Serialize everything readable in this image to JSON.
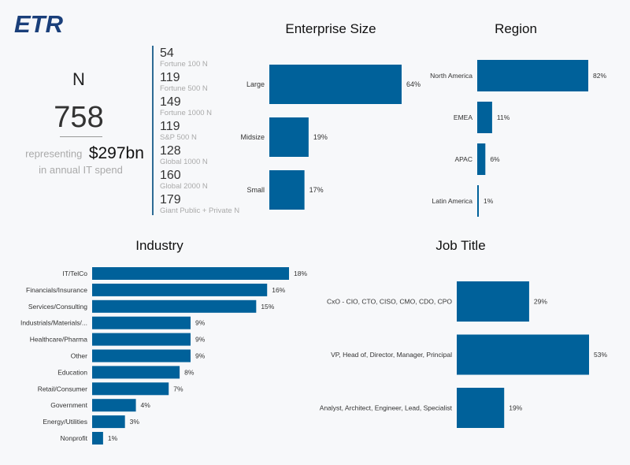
{
  "brand": {
    "logo_text": "ETR",
    "logo_color": "#1a3f7a",
    "bar_color": "#00619a"
  },
  "summary": {
    "n_label": "N",
    "n_value": "758",
    "representing": "representing",
    "amount": "$297bn",
    "sub": "in annual IT spend"
  },
  "counts": [
    {
      "value": "54",
      "label": "Fortune 100 N"
    },
    {
      "value": "119",
      "label": "Fortune 500 N"
    },
    {
      "value": "149",
      "label": "Fortune 1000 N"
    },
    {
      "value": "119",
      "label": "S&P 500 N"
    },
    {
      "value": "128",
      "label": "Global 1000 N"
    },
    {
      "value": "160",
      "label": "Global 2000 N"
    },
    {
      "value": "179",
      "label": "Giant Public + Private N"
    }
  ],
  "chart_data": [
    {
      "id": "enterprise",
      "type": "bar",
      "orientation": "horizontal",
      "title": "Enterprise Size",
      "categories": [
        "Large",
        "Midsize",
        "Small"
      ],
      "values": [
        64,
        19,
        17
      ],
      "labels": [
        "64%",
        "19%",
        "17%"
      ],
      "xlabel": "",
      "ylabel": "",
      "grid": false
    },
    {
      "id": "region",
      "type": "bar",
      "orientation": "horizontal",
      "title": "Region",
      "categories": [
        "North America",
        "EMEA",
        "APAC",
        "Latin America"
      ],
      "values": [
        82,
        11,
        6,
        1
      ],
      "labels": [
        "82%",
        "11%",
        "6%",
        "1%"
      ],
      "xlabel": "",
      "ylabel": "",
      "grid": false
    },
    {
      "id": "industry",
      "type": "bar",
      "orientation": "horizontal",
      "title": "Industry",
      "categories": [
        "IT/TelCo",
        "Financials/Insurance",
        "Services/Consulting",
        "Industrials/Materials/...",
        "Healthcare/Pharma",
        "Other",
        "Education",
        "Retail/Consumer",
        "Government",
        "Energy/Utilities",
        "Nonprofit"
      ],
      "values": [
        18,
        16,
        15,
        9,
        9,
        9,
        8,
        7,
        4,
        3,
        1
      ],
      "labels": [
        "18%",
        "16%",
        "15%",
        "9%",
        "9%",
        "9%",
        "8%",
        "7%",
        "4%",
        "3%",
        "1%"
      ],
      "xlabel": "",
      "ylabel": "",
      "grid": false
    },
    {
      "id": "jobtitle",
      "type": "bar",
      "orientation": "horizontal",
      "title": "Job Title",
      "categories": [
        "CxO - CIO, CTO, CISO, CMO, CDO, CPO",
        "VP, Head of, Director, Manager, Principal",
        "Analyst, Architect, Engineer, Lead, Specialist"
      ],
      "values": [
        29,
        53,
        19
      ],
      "labels": [
        "29%",
        "53%",
        "19%"
      ],
      "xlabel": "",
      "ylabel": "",
      "grid": false
    }
  ]
}
